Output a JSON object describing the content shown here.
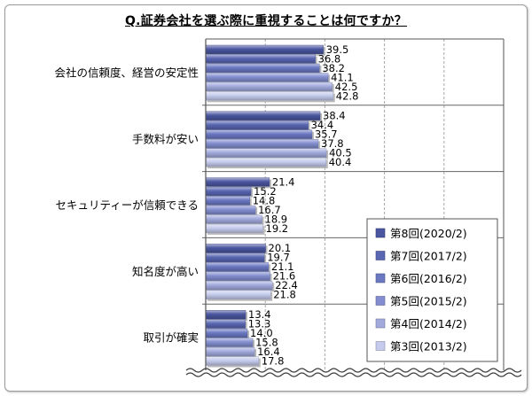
{
  "chart_data": {
    "type": "bar",
    "orientation": "horizontal",
    "title": "Q.証券会社を選ぶ際に重視することは何ですか？",
    "categories": [
      "会社の信頼度、経営の安定性",
      "手数料が安い",
      "セキュリティーが信頼できる",
      "知名度が高い",
      "取引が確実"
    ],
    "series": [
      {
        "name": "第8回(2020/2)",
        "color": "#4a56a0",
        "values": [
          39.5,
          38.4,
          21.4,
          20.1,
          13.4
        ]
      },
      {
        "name": "第7回(2017/2)",
        "color": "#5966b2",
        "values": [
          36.8,
          34.4,
          15.2,
          19.7,
          13.3
        ]
      },
      {
        "name": "第6回(2016/2)",
        "color": "#6b78c2",
        "values": [
          38.2,
          35.7,
          14.8,
          21.1,
          14.0
        ]
      },
      {
        "name": "第5回(2015/2)",
        "color": "#838ed0",
        "values": [
          41.1,
          37.8,
          16.7,
          21.6,
          15.8
        ]
      },
      {
        "name": "第4回(2014/2)",
        "color": "#a2aadd",
        "values": [
          42.5,
          40.5,
          18.9,
          22.4,
          16.4
        ]
      },
      {
        "name": "第3回(2013/2)",
        "color": "#c5cbec",
        "values": [
          42.8,
          40.4,
          19.2,
          21.8,
          17.8
        ]
      }
    ],
    "xlim": [
      0,
      100
    ],
    "grid": true,
    "legend_position": "right",
    "axis_break": true
  }
}
